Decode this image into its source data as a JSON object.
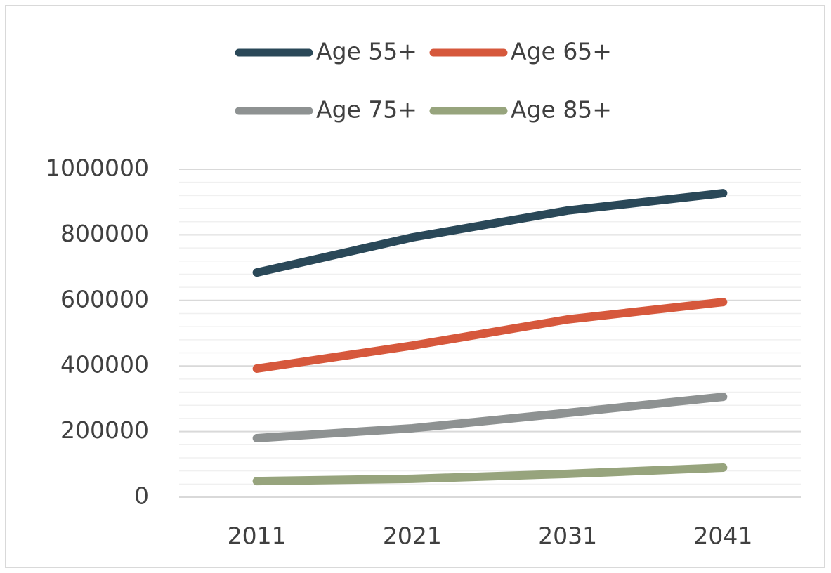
{
  "chart_data": {
    "type": "line",
    "categories": [
      "2011",
      "2021",
      "2031",
      "2041"
    ],
    "series": [
      {
        "name": "Age 55+",
        "color": "#2a4858",
        "values": [
          685000,
          792000,
          874000,
          927000
        ]
      },
      {
        "name": "Age 65+",
        "color": "#d6583c",
        "values": [
          392000,
          462000,
          542000,
          595000
        ]
      },
      {
        "name": "Age 75+",
        "color": "#8e9292",
        "values": [
          180000,
          210000,
          257000,
          306000
        ]
      },
      {
        "name": "Age 85+",
        "color": "#97a47d",
        "values": [
          49000,
          56000,
          71000,
          90000
        ]
      }
    ],
    "ylim": [
      0,
      1000000
    ],
    "yticks": [
      0,
      200000,
      400000,
      600000,
      800000,
      1000000
    ],
    "minor_yticks": [
      40000,
      80000,
      120000,
      160000,
      240000,
      280000,
      320000,
      360000,
      440000,
      480000,
      520000,
      560000,
      640000,
      680000,
      720000,
      760000,
      840000,
      880000,
      920000,
      960000
    ],
    "grid": true,
    "legend": "top"
  }
}
